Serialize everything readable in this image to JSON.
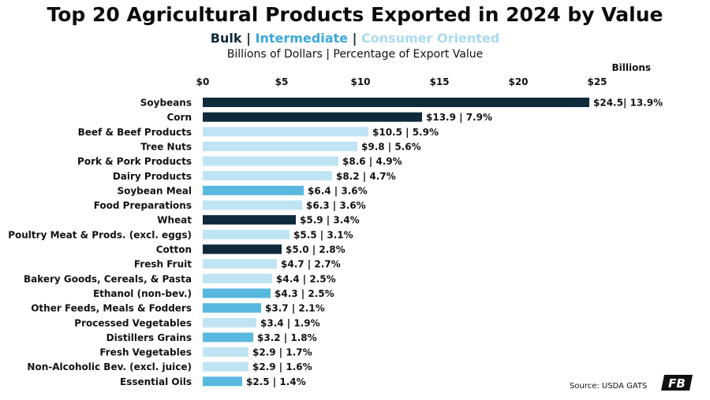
{
  "chart_data": {
    "type": "bar",
    "orientation": "horizontal",
    "title": "Top 20 Agricultural Products Exported in 2024 by Value",
    "subtitle": "Billions of Dollars | Percentage of Export Value",
    "units_label": "Billions",
    "legend": {
      "bulk": "Bulk",
      "intermediate": "Intermediate",
      "consumer": "Consumer Oriented",
      "separator": " | "
    },
    "xlim": [
      0,
      25
    ],
    "xticks": [
      {
        "value": 0,
        "label": "$0"
      },
      {
        "value": 5,
        "label": "$5"
      },
      {
        "value": 10,
        "label": "$10"
      },
      {
        "value": 15,
        "label": "$15"
      },
      {
        "value": 20,
        "label": "$20"
      },
      {
        "value": 25,
        "label": "$25"
      }
    ],
    "categories": [
      "Soybeans",
      "Corn",
      "Beef & Beef Products",
      "Tree Nuts",
      "Pork & Pork Products",
      "Dairy Products",
      "Soybean Meal",
      "Food Preparations",
      "Wheat",
      "Poultry Meat & Prods. (excl. eggs)",
      "Cotton",
      "Fresh Fruit",
      "Bakery Goods, Cereals, & Pasta",
      "Ethanol (non-bev.)",
      "Other Feeds, Meals & Fodders",
      "Processed Vegetables",
      "Distillers Grains",
      "Fresh Vegetables",
      "Non-Alcoholic Bev. (excl. juice)",
      "Essential Oils"
    ],
    "values": [
      24.5,
      13.9,
      10.5,
      9.8,
      8.6,
      8.2,
      6.4,
      6.3,
      5.9,
      5.5,
      5.0,
      4.7,
      4.4,
      4.3,
      3.7,
      3.4,
      3.2,
      2.9,
      2.9,
      2.5
    ],
    "segment": [
      "bulk",
      "bulk",
      "consumer",
      "consumer",
      "consumer",
      "consumer",
      "intermediate",
      "consumer",
      "bulk",
      "consumer",
      "bulk",
      "consumer",
      "consumer",
      "intermediate",
      "intermediate",
      "consumer",
      "intermediate",
      "consumer",
      "consumer",
      "intermediate"
    ],
    "labels": [
      "$24.5| 13.9%",
      "$13.9 | 7.9%",
      "$10.5 | 5.9%",
      "$9.8 | 5.6%",
      "$8.6 | 4.9%",
      "$8.2 | 4.7%",
      "$6.4 | 3.6%",
      "$6.3 | 3.6%",
      "$5.9 | 3.4%",
      "$5.5 | 3.1%",
      "$5.0 | 2.8%",
      "$4.7 | 2.7%",
      "$4.4 | 2.5%",
      "$4.3 | 2.5%",
      "$3.7 | 2.1%",
      "$3.4 | 1.9%",
      "$3.2 | 1.8%",
      "$2.9 | 1.7%",
      "$2.9 | 1.6%",
      "$2.5 | 1.4%"
    ],
    "colors": {
      "bulk": "#0f2a3b",
      "intermediate": "#59b8e0",
      "consumer": "#bfe4f4"
    },
    "grid": false,
    "source": "Source: USDA GATS"
  },
  "logo_text": "FB"
}
